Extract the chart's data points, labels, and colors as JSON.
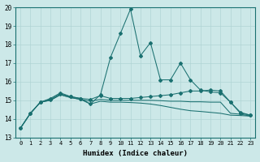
{
  "xlabel": "Humidex (Indice chaleur)",
  "x_values": [
    0,
    1,
    2,
    3,
    4,
    5,
    6,
    7,
    8,
    9,
    10,
    11,
    12,
    13,
    14,
    15,
    16,
    17,
    18,
    19,
    20,
    21,
    22,
    23
  ],
  "curve_peak": [
    13.5,
    14.3,
    14.9,
    15.1,
    15.4,
    15.2,
    15.1,
    14.8,
    15.3,
    17.3,
    18.6,
    19.9,
    17.4,
    18.1,
    16.1,
    16.1,
    17.0,
    16.1,
    15.55,
    15.45,
    15.4,
    14.9,
    14.35,
    14.2
  ],
  "curve_upper": [
    13.5,
    14.3,
    14.9,
    15.05,
    15.35,
    15.2,
    15.1,
    15.05,
    15.25,
    15.1,
    15.1,
    15.1,
    15.15,
    15.2,
    15.25,
    15.3,
    15.4,
    15.5,
    15.5,
    15.55,
    15.5,
    14.9,
    14.3,
    14.2
  ],
  "curve_lower": [
    13.5,
    14.3,
    14.9,
    15.0,
    15.3,
    15.15,
    15.05,
    14.8,
    14.95,
    14.9,
    14.9,
    14.88,
    14.85,
    14.8,
    14.72,
    14.62,
    14.52,
    14.44,
    14.4,
    14.35,
    14.3,
    14.2,
    14.18,
    14.15
  ],
  "curve_mid": [
    13.5,
    14.3,
    14.9,
    15.0,
    15.3,
    15.15,
    15.05,
    14.95,
    15.05,
    15.0,
    15.0,
    15.0,
    15.0,
    15.0,
    14.98,
    14.95,
    14.95,
    14.92,
    14.92,
    14.9,
    14.9,
    14.3,
    14.25,
    14.15
  ],
  "bg_color": "#cce8e8",
  "grid_color": "#b0d4d4",
  "line_color": "#1a7070",
  "ylim": [
    13,
    20
  ],
  "yticks": [
    13,
    14,
    15,
    16,
    17,
    18,
    19,
    20
  ],
  "xlim": [
    -0.5,
    23.5
  ]
}
